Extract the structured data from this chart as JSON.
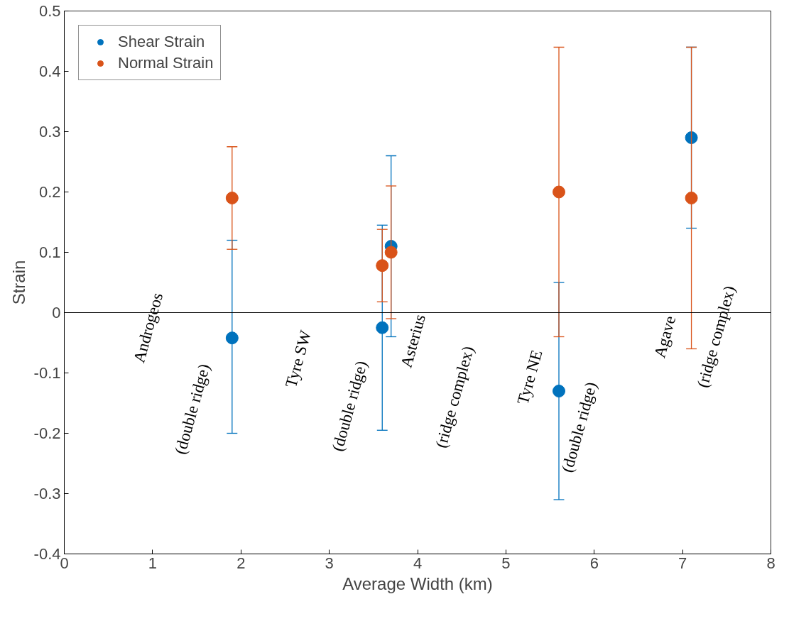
{
  "chart_data": {
    "type": "scatter",
    "xlabel": "Average Width (km)",
    "ylabel": "Strain",
    "x": [
      1.9,
      3.6,
      3.7,
      5.6,
      7.1
    ],
    "series": [
      {
        "name": "Shear Strain",
        "color": "#0072bd",
        "values": [
          -0.042,
          -0.025,
          0.11,
          -0.13,
          0.29
        ],
        "errors": [
          [
            -0.2,
            0.12
          ],
          [
            -0.195,
            0.145
          ],
          [
            -0.04,
            0.26
          ],
          [
            -0.31,
            0.05
          ],
          [
            0.14,
            0.44
          ]
        ]
      },
      {
        "name": "Normal Strain",
        "color": "#d95319",
        "values": [
          0.19,
          0.078,
          0.1,
          0.2,
          0.19
        ],
        "errors": [
          [
            0.105,
            0.275
          ],
          [
            0.018,
            0.138
          ],
          [
            -0.01,
            0.21
          ],
          [
            -0.04,
            0.44
          ],
          [
            -0.06,
            0.44
          ]
        ]
      }
    ],
    "xlim": [
      0,
      8
    ],
    "ylim": [
      -0.4,
      0.5
    ],
    "xticks": [
      0,
      1,
      2,
      3,
      4,
      5,
      6,
      7,
      8
    ],
    "yticks": [
      -0.4,
      -0.3,
      -0.2,
      -0.1,
      0,
      0.1,
      0.2,
      0.3,
      0.4,
      0.5
    ],
    "ref_lines": [
      {
        "axis": "y",
        "value": 0,
        "color": "#000000"
      }
    ],
    "annotations": [
      "Androgeos",
      "(double ridge)",
      "Tyre SW",
      "(double ridge)",
      "Asterius",
      "(ridge complex)",
      "Tyre NE",
      "(double ridge)",
      "Agave",
      "(ridge complex)"
    ],
    "marker": "circle",
    "grid": false,
    "legend": "top left"
  }
}
